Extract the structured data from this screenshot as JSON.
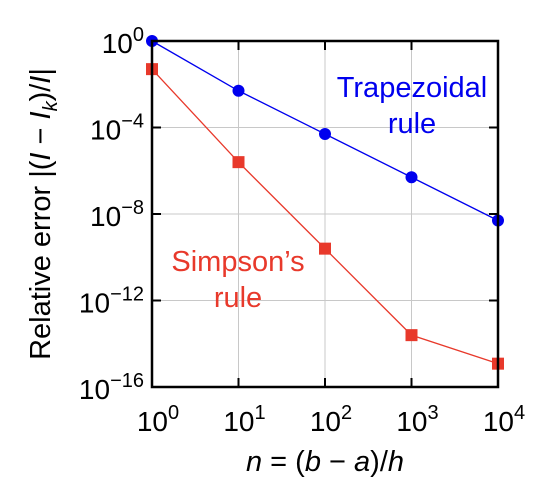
{
  "chart_data": {
    "type": "line",
    "x_scale": "log",
    "y_scale": "log",
    "xlim": [
      1,
      10000
    ],
    "ylim": [
      1e-16,
      1
    ],
    "grid": true,
    "x": [
      1,
      10,
      100,
      1000,
      10000
    ],
    "x_ticks": [
      1,
      10,
      100,
      1000,
      10000
    ],
    "y_ticks": [
      1e-16,
      1e-12,
      1e-08,
      0.0001,
      1
    ],
    "x_tick_labels": [
      {
        "base": "10",
        "exp": "0"
      },
      {
        "base": "10",
        "exp": "1"
      },
      {
        "base": "10",
        "exp": "2"
      },
      {
        "base": "10",
        "exp": "3"
      },
      {
        "base": "10",
        "exp": "4"
      }
    ],
    "y_tick_labels": [
      {
        "base": "10",
        "exp": "−16"
      },
      {
        "base": "10",
        "exp": "−12"
      },
      {
        "base": "10",
        "exp": "−8"
      },
      {
        "base": "10",
        "exp": "−4"
      },
      {
        "base": "10",
        "exp": "0"
      }
    ],
    "xlabel": {
      "n": "n",
      "eq": " = (",
      "b": "b",
      "minus": " − ",
      "a": "a",
      "rest": ")/",
      "h": "h"
    },
    "ylabel": {
      "prefix": "Relative error |(",
      "I1": "I",
      "minus": " − ",
      "I2": "I",
      "sub": "k",
      "close": ")/",
      "I3": "I",
      "end": "|"
    },
    "series": [
      {
        "values": [
          1.0,
          0.005,
          5e-05,
          5e-07,
          5e-09
        ],
        "color": "#0000ee",
        "marker": "circle",
        "annotation": [
          "Trapezoidal",
          "rule"
        ]
      },
      {
        "values": [
          0.05,
          2.5e-06,
          2.5e-10,
          2.5e-14,
          1.2e-15
        ],
        "color": "#e8392b",
        "marker": "square",
        "annotation": [
          "Simpson’s",
          "rule"
        ]
      }
    ]
  }
}
